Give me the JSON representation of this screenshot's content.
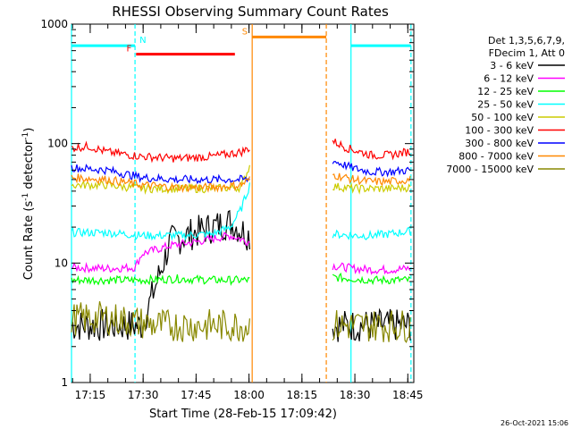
{
  "chart_data": {
    "type": "line",
    "title": "RHESSI Observing Summary Count Rates",
    "xlabel": "Start Time (28-Feb-15 17:09:42)",
    "ylabel_main": "Count Rate (s",
    "ylabel_sup1": "-1",
    "ylabel_mid": " detector",
    "ylabel_sup2": "-1",
    "ylabel_end": ")",
    "y_scale": "log",
    "ylim": [
      1,
      1000
    ],
    "xlim_minutes": [
      0,
      97
    ],
    "x_tick_labels": [
      "17:15",
      "17:30",
      "17:45",
      "18:00",
      "18:15",
      "18:30",
      "18:45"
    ],
    "x_tick_minutes": [
      5.3,
      20.3,
      35.3,
      50.3,
      65.3,
      80.3,
      95.3
    ],
    "y_tick_labels": [
      "1",
      "10",
      "100",
      "1000"
    ],
    "y_tick_values": [
      1,
      10,
      100,
      1000
    ],
    "legend_placement": "right",
    "legend_header": [
      "Det 1,3,5,6,7,9,",
      "FDecim 1, Att 0"
    ],
    "series": [
      {
        "name": "3 - 6 keV",
        "color": "#000000",
        "segments": [
          {
            "x": [
              0,
              10,
              20,
              28,
              35,
              40,
              45,
              50.5
            ],
            "y": [
              3.0,
              3.0,
              3.0,
              15,
              18,
              20,
              22,
              17
            ]
          },
          {
            "x": [
              74,
              80,
              85,
              90,
              96
            ],
            "y": [
              3.0,
              3.0,
              3.0,
              3.0,
              3.0
            ]
          }
        ]
      },
      {
        "name": "6 - 12 keV",
        "color": "#ff00ff",
        "segments": [
          {
            "x": [
              0,
              10,
              18,
              20,
              28,
              35,
              40,
              45,
              50.5
            ],
            "y": [
              9.2,
              9.0,
              9.2,
              12,
              14,
              15,
              16,
              17,
              15
            ]
          },
          {
            "x": [
              74,
              80,
              85,
              90,
              96
            ],
            "y": [
              9.5,
              9.0,
              8.8,
              8.8,
              9.0
            ]
          }
        ]
      },
      {
        "name": "12 - 25 keV",
        "color": "#00ff00",
        "segments": [
          {
            "x": [
              0,
              10,
              20,
              30,
              40,
              50.5
            ],
            "y": [
              7.2,
              7.2,
              7.2,
              7.4,
              7.2,
              7.2
            ]
          },
          {
            "x": [
              74,
              80,
              85,
              90,
              96
            ],
            "y": [
              7.6,
              7.4,
              7.2,
              7.2,
              7.2
            ]
          }
        ]
      },
      {
        "name": "25 - 50 keV",
        "color": "#00ffff",
        "segments": [
          {
            "x": [
              0,
              10,
              20,
              30,
              40,
              45,
              48,
              50.5
            ],
            "y": [
              18,
              18,
              17,
              17,
              17.5,
              20,
              28,
              45
            ]
          },
          {
            "x": [
              74,
              80,
              85,
              90,
              96
            ],
            "y": [
              17.5,
              17,
              17,
              17.5,
              18.5
            ]
          }
        ]
      },
      {
        "name": "50 - 100 keV",
        "color": "#cccc00",
        "segments": [
          {
            "x": [
              0,
              10,
              20,
              30,
              40,
              48,
              50.5
            ],
            "y": [
              45,
              45,
              42,
              42,
              42,
              43,
              65
            ]
          },
          {
            "x": [
              74,
              80,
              85,
              90,
              96
            ],
            "y": [
              44,
              42,
              42,
              42,
              43
            ]
          }
        ]
      },
      {
        "name": "100 - 300 keV",
        "color": "#ff0000",
        "segments": [
          {
            "x": [
              0,
              5,
              10,
              20,
              30,
              40,
              48,
              50.5
            ],
            "y": [
              92,
              95,
              85,
              78,
              75,
              78,
              85,
              92
            ]
          },
          {
            "x": [
              74,
              78,
              85,
              90,
              96
            ],
            "y": [
              105,
              92,
              80,
              80,
              86
            ]
          }
        ]
      },
      {
        "name": "300 - 800 keV",
        "color": "#0000ff",
        "segments": [
          {
            "x": [
              0,
              10,
              20,
              30,
              40,
              50.5
            ],
            "y": [
              63,
              60,
              52,
              50,
              50,
              50
            ]
          },
          {
            "x": [
              74,
              80,
              85,
              90,
              96
            ],
            "y": [
              72,
              62,
              58,
              58,
              60
            ]
          }
        ]
      },
      {
        "name": "800 - 7000 keV",
        "color": "#ff8800",
        "segments": [
          {
            "x": [
              0,
              10,
              20,
              30,
              40,
              48,
              50.5
            ],
            "y": [
              52,
              50,
              45,
              43,
              43,
              45,
              50
            ]
          },
          {
            "x": [
              74,
              80,
              85,
              90,
              96
            ],
            "y": [
              55,
              50,
              48,
              48,
              50
            ]
          }
        ]
      },
      {
        "name": "7000 - 15000 keV",
        "color": "#888800",
        "segments": [
          {
            "x": [
              0,
              10,
              18,
              25,
              35,
              45,
              50.5
            ],
            "y": [
              3.4,
              3.5,
              3.2,
              3.0,
              3.0,
              3.0,
              3.0
            ]
          },
          {
            "x": [
              74,
              80,
              85,
              90,
              96
            ],
            "y": [
              3.0,
              3.0,
              3.0,
              3.0,
              3.0
            ]
          }
        ]
      }
    ],
    "vertical_markers": [
      {
        "x": 0,
        "color": "#00ffff",
        "style": "solid"
      },
      {
        "x": 18,
        "color": "#00ffff",
        "style": "dashed"
      },
      {
        "x": 51.2,
        "color": "#ff8800",
        "style": "solid"
      },
      {
        "x": 72.2,
        "color": "#ff8800",
        "style": "dashed"
      },
      {
        "x": 79.2,
        "color": "#00ffff",
        "style": "solid"
      },
      {
        "x": 96.2,
        "color": "#00ffff",
        "style": "dashed"
      }
    ],
    "flag_bars": [
      {
        "label": "N",
        "color": "#00ffff",
        "x0": 0,
        "x1": 18,
        "y": 660,
        "label_side": "right"
      },
      {
        "label": "",
        "color": "#00ffff",
        "x0": 79.2,
        "x1": 96.2,
        "y": 660
      },
      {
        "label": "F",
        "color": "#ff0000",
        "x0": 18.3,
        "x1": 46.3,
        "y": 560,
        "label_side": "left"
      },
      {
        "label": "S",
        "color": "#ff8800",
        "x0": 51.2,
        "x1": 72.2,
        "y": 780,
        "label_side": "left"
      }
    ],
    "footer_date": "26-Oct-2021 15:06"
  }
}
